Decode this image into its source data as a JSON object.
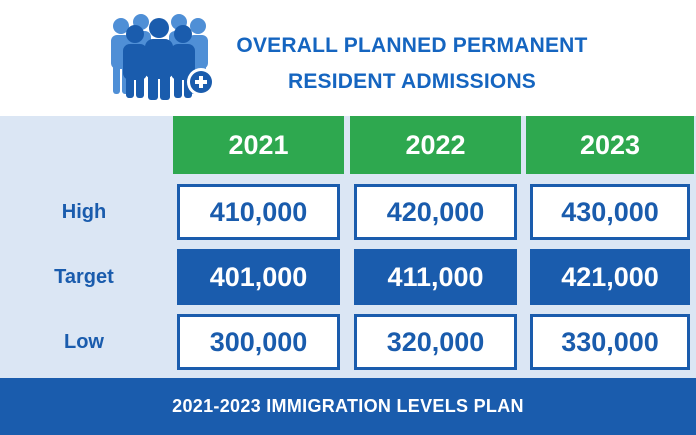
{
  "title": {
    "line1": "OVERALL PLANNED PERMANENT",
    "line2": "RESIDENT ADMISSIONS"
  },
  "icon": "people-group-plus-icon",
  "footer": "2021-2023 IMMIGRATION LEVELS PLAN",
  "colors": {
    "blue": "#1a5cad",
    "green": "#2ea84f",
    "label_bg": "#dbe6f4"
  },
  "chart_data": {
    "type": "table",
    "columns": [
      "2021",
      "2022",
      "2023"
    ],
    "rows": [
      {
        "label": "High",
        "values": [
          "410,000",
          "420,000",
          "430,000"
        ],
        "style": "outline"
      },
      {
        "label": "Target",
        "values": [
          "401,000",
          "411,000",
          "421,000"
        ],
        "style": "filled"
      },
      {
        "label": "Low",
        "values": [
          "300,000",
          "320,000",
          "330,000"
        ],
        "style": "outline"
      }
    ]
  }
}
